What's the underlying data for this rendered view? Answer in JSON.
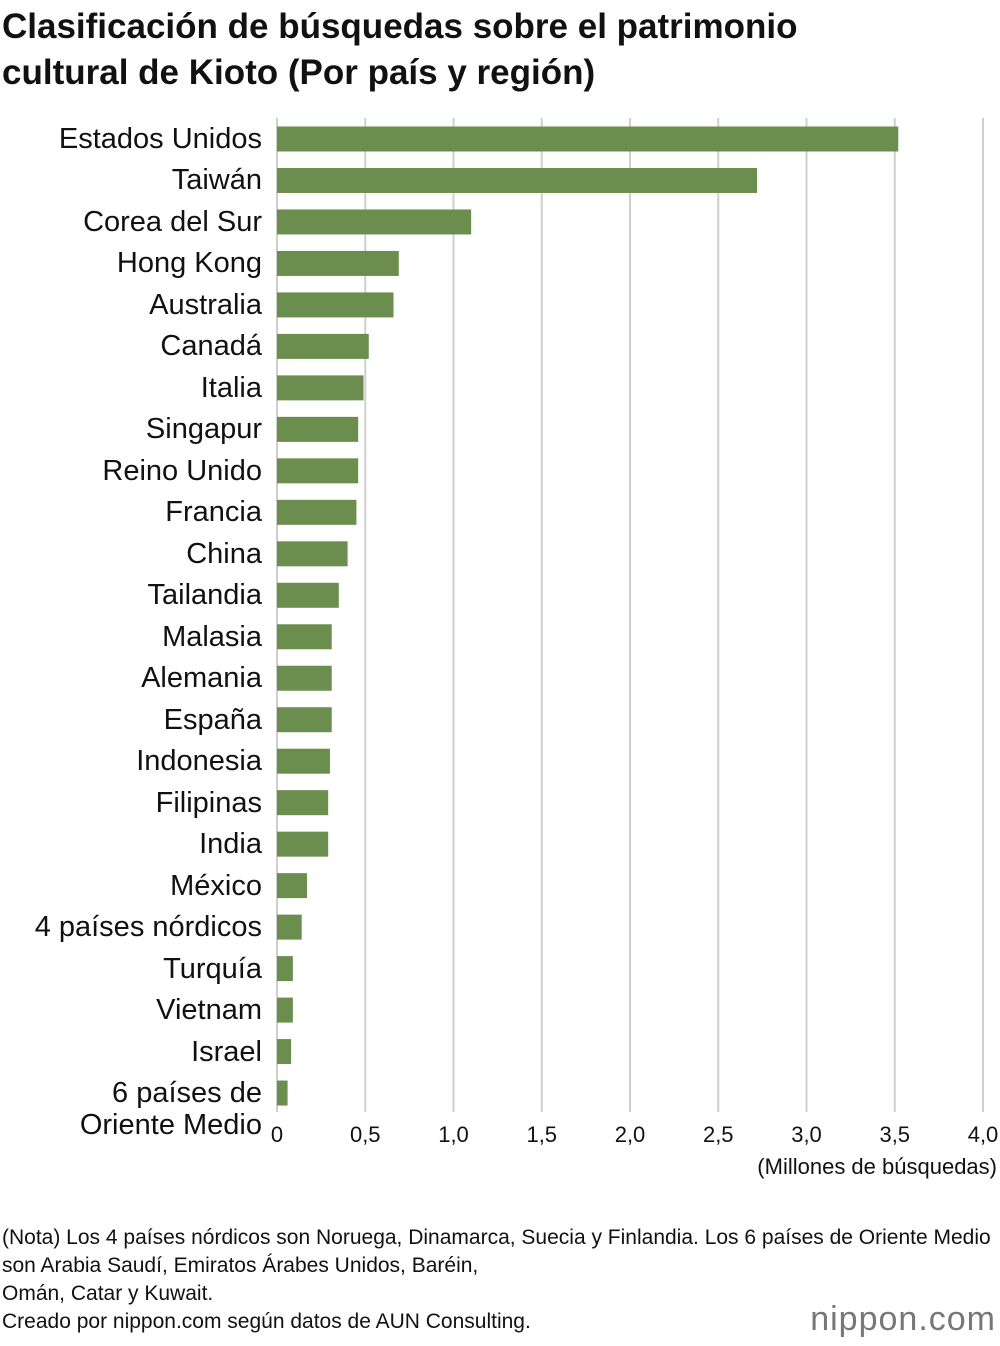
{
  "chart_data": {
    "type": "bar",
    "orientation": "horizontal",
    "title": "Clasificación de búsquedas sobre el patrimonio cultural de Kioto (Por país y región)",
    "x_label": "(Millones de búsquedas)",
    "categories": [
      "Estados Unidos",
      "Taiwán",
      "Corea del Sur",
      "Hong Kong",
      "Australia",
      "Canadá",
      "Italia",
      "Singapur",
      "Reino Unido",
      "Francia",
      "China",
      "Tailandia",
      "Malasia",
      "Alemania",
      "España",
      "Indonesia",
      "Filipinas",
      "India",
      "México",
      "4 países nórdicos",
      "Turquía",
      "Vietnam",
      "Israel",
      "6 países de\nOriente Medio"
    ],
    "values": [
      3.52,
      2.72,
      1.1,
      0.69,
      0.66,
      0.52,
      0.49,
      0.46,
      0.46,
      0.45,
      0.4,
      0.35,
      0.31,
      0.31,
      0.31,
      0.3,
      0.29,
      0.29,
      0.17,
      0.14,
      0.09,
      0.09,
      0.08,
      0.06
    ],
    "color": "#6b8e4e",
    "xlim": [
      0,
      4.0
    ],
    "xticks": [
      0,
      {
        "value": 0.5,
        "label": "0,5"
      },
      {
        "value": 1.0,
        "label": "1,0"
      },
      {
        "value": 1.5,
        "label": "1,5"
      },
      {
        "value": 2.0,
        "label": "2,0"
      },
      {
        "value": 2.5,
        "label": "2,5"
      },
      {
        "value": 3.0,
        "label": "3,0"
      },
      {
        "value": 3.5,
        "label": "3,5"
      },
      {
        "value": 4.0,
        "label": "4,0"
      }
    ],
    "grid": true,
    "note": "(Nota) Los 4 países nórdicos son Noruega, Dinamarca, Suecia y Finlandia. Los 6 países de Oriente Medio son Arabia Saudí, Emiratos Árabes Unidos, Baréin,\nOmán, Catar y Kuwait.",
    "source": "Creado por nippon.com según datos de AUN Consulting.",
    "logo": "nippon.com"
  }
}
